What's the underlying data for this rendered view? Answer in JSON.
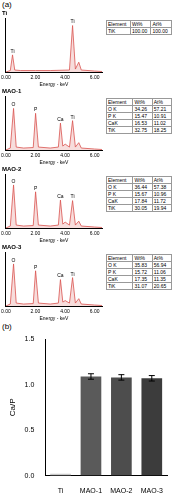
{
  "panel_labels": [
    "(a)",
    "(b)"
  ],
  "chart_data": [
    {
      "type": "line",
      "title": "Ti",
      "color": "#d9534f",
      "xlabel": "Energy - keV",
      "x": [
        0,
        0.3,
        0.45,
        0.6,
        1.0,
        2.0,
        3.0,
        4.3,
        4.51,
        4.7,
        4.93,
        5.1,
        6.0,
        6.5
      ],
      "values": [
        0,
        3,
        35,
        4,
        3,
        3,
        3,
        4,
        95,
        6,
        20,
        4,
        2,
        1
      ],
      "xlim": [
        0,
        6.5
      ],
      "ylim": [
        0,
        110
      ],
      "xticks": [
        {
          "value": 0,
          "label": "0.00"
        },
        {
          "value": 2,
          "label": "2.00"
        },
        {
          "value": 4,
          "label": "4.00"
        },
        {
          "value": 6,
          "label": "6.00"
        }
      ],
      "tick_labels": "x",
      "grid": false,
      "annotations": [
        {
          "text": "Ti",
          "x": 0.45,
          "y": 35
        },
        {
          "text": "Ti",
          "x": 4.51,
          "y": 95
        }
      ],
      "table": {
        "header": [
          "Element",
          "Wt%",
          "At%"
        ],
        "rows": [
          [
            "TiK",
            "100.00",
            "100.00"
          ]
        ]
      }
    },
    {
      "type": "line",
      "title": "MAO-1",
      "color": "#d9534f",
      "xlabel": "Energy - keV",
      "x": [
        0,
        0.3,
        0.52,
        0.7,
        1.2,
        1.85,
        2.01,
        2.2,
        3.0,
        3.55,
        3.69,
        3.85,
        4.01,
        4.3,
        4.51,
        4.7,
        4.93,
        5.1,
        6.0,
        6.5
      ],
      "values": [
        0,
        4,
        85,
        6,
        4,
        5,
        75,
        6,
        4,
        6,
        55,
        8,
        12,
        6,
        60,
        6,
        15,
        4,
        2,
        1
      ],
      "xlim": [
        0,
        6.5
      ],
      "ylim": [
        0,
        110
      ],
      "xticks": [
        {
          "value": 0,
          "label": "0.00"
        },
        {
          "value": 2,
          "label": "2.00"
        },
        {
          "value": 4,
          "label": "4.00"
        },
        {
          "value": 6,
          "label": "6.00"
        }
      ],
      "tick_labels": "x",
      "grid": false,
      "annotations": [
        {
          "text": "O",
          "x": 0.52,
          "y": 85
        },
        {
          "text": "P",
          "x": 2.01,
          "y": 75
        },
        {
          "text": "Ca",
          "x": 3.69,
          "y": 55
        },
        {
          "text": "Ti",
          "x": 4.51,
          "y": 60
        }
      ],
      "table": {
        "header": [
          "Element",
          "Wt%",
          "At%"
        ],
        "rows": [
          [
            "O K",
            "34.26",
            "57.21"
          ],
          [
            "P K",
            "15.47",
            "10.91"
          ],
          [
            "CaK",
            "16.53",
            "11.02"
          ],
          [
            "TiK",
            "32.75",
            "18.25"
          ]
        ]
      }
    },
    {
      "type": "line",
      "title": "MAO-2",
      "color": "#d9534f",
      "xlabel": "Energy - keV",
      "x": [
        0,
        0.3,
        0.52,
        0.7,
        1.2,
        1.85,
        2.01,
        2.2,
        3.0,
        3.55,
        3.69,
        3.85,
        4.01,
        4.3,
        4.51,
        4.7,
        4.93,
        5.1,
        6.0,
        6.5
      ],
      "values": [
        0,
        4,
        88,
        6,
        4,
        5,
        74,
        6,
        4,
        6,
        57,
        8,
        12,
        6,
        56,
        6,
        14,
        4,
        2,
        1
      ],
      "xlim": [
        0,
        6.5
      ],
      "ylim": [
        0,
        110
      ],
      "xticks": [
        {
          "value": 0,
          "label": "0.00"
        },
        {
          "value": 2,
          "label": "2.00"
        },
        {
          "value": 4,
          "label": "4.00"
        },
        {
          "value": 6,
          "label": "6.00"
        }
      ],
      "tick_labels": "x",
      "grid": false,
      "annotations": [
        {
          "text": "O",
          "x": 0.52,
          "y": 88
        },
        {
          "text": "P",
          "x": 2.01,
          "y": 74
        },
        {
          "text": "Ca",
          "x": 3.69,
          "y": 57
        },
        {
          "text": "Ti",
          "x": 4.51,
          "y": 56
        }
      ],
      "table": {
        "header": [
          "Element",
          "Wt%",
          "At%"
        ],
        "rows": [
          [
            "O K",
            "36.44",
            "57.38"
          ],
          [
            "P K",
            "15.67",
            "10.96"
          ],
          [
            "CaK",
            "17.84",
            "11.72"
          ],
          [
            "TiK",
            "30.05",
            "19.94"
          ]
        ]
      }
    },
    {
      "type": "line",
      "title": "MAO-3",
      "color": "#d9534f",
      "xlabel": "Energy - keV",
      "x": [
        0,
        0.3,
        0.52,
        0.7,
        1.2,
        1.85,
        2.01,
        2.2,
        3.0,
        3.55,
        3.69,
        3.85,
        4.01,
        4.3,
        4.51,
        4.7,
        4.93,
        5.1,
        6.0,
        6.5
      ],
      "values": [
        0,
        4,
        86,
        6,
        4,
        5,
        72,
        6,
        4,
        6,
        54,
        8,
        11,
        6,
        58,
        6,
        15,
        4,
        2,
        1
      ],
      "xlim": [
        0,
        6.5
      ],
      "ylim": [
        0,
        110
      ],
      "xticks": [
        {
          "value": 0,
          "label": "0.00"
        },
        {
          "value": 2,
          "label": "2.00"
        },
        {
          "value": 4,
          "label": "4.00"
        },
        {
          "value": 6,
          "label": "6.00"
        }
      ],
      "tick_labels": "x",
      "grid": false,
      "annotations": [
        {
          "text": "O",
          "x": 0.52,
          "y": 86
        },
        {
          "text": "P",
          "x": 2.01,
          "y": 72
        },
        {
          "text": "Ca",
          "x": 3.69,
          "y": 54
        },
        {
          "text": "Ti",
          "x": 4.51,
          "y": 58
        }
      ],
      "table": {
        "header": [
          "Element",
          "Wt%",
          "At%"
        ],
        "rows": [
          [
            "O K",
            "35.83",
            "56.94"
          ],
          [
            "P K",
            "15.72",
            "11.06"
          ],
          [
            "CaK",
            "17.35",
            "11.35"
          ],
          [
            "TiK",
            "31.07",
            "20.65"
          ]
        ]
      }
    },
    {
      "type": "bar",
      "ylabel": "Ca/P",
      "categories": [
        "Ti",
        "MAO-1",
        "MAO-2",
        "MAO-3"
      ],
      "values": [
        0.02,
        1.09,
        1.08,
        1.07
      ],
      "errors": [
        null,
        0.03,
        0.03,
        0.03
      ],
      "colors": [
        "#c8c8c8",
        "#5a5a5a",
        "#4d4d4d",
        "#3c3c3c"
      ],
      "ylim": [
        0,
        1.5
      ],
      "yticks": [
        {
          "value": 0,
          "label": "0.0"
        },
        {
          "value": 0.5,
          "label": "0.5"
        },
        {
          "value": 1,
          "label": "1.0"
        },
        {
          "value": 1.5,
          "label": "1.5"
        }
      ],
      "grid": false
    }
  ]
}
